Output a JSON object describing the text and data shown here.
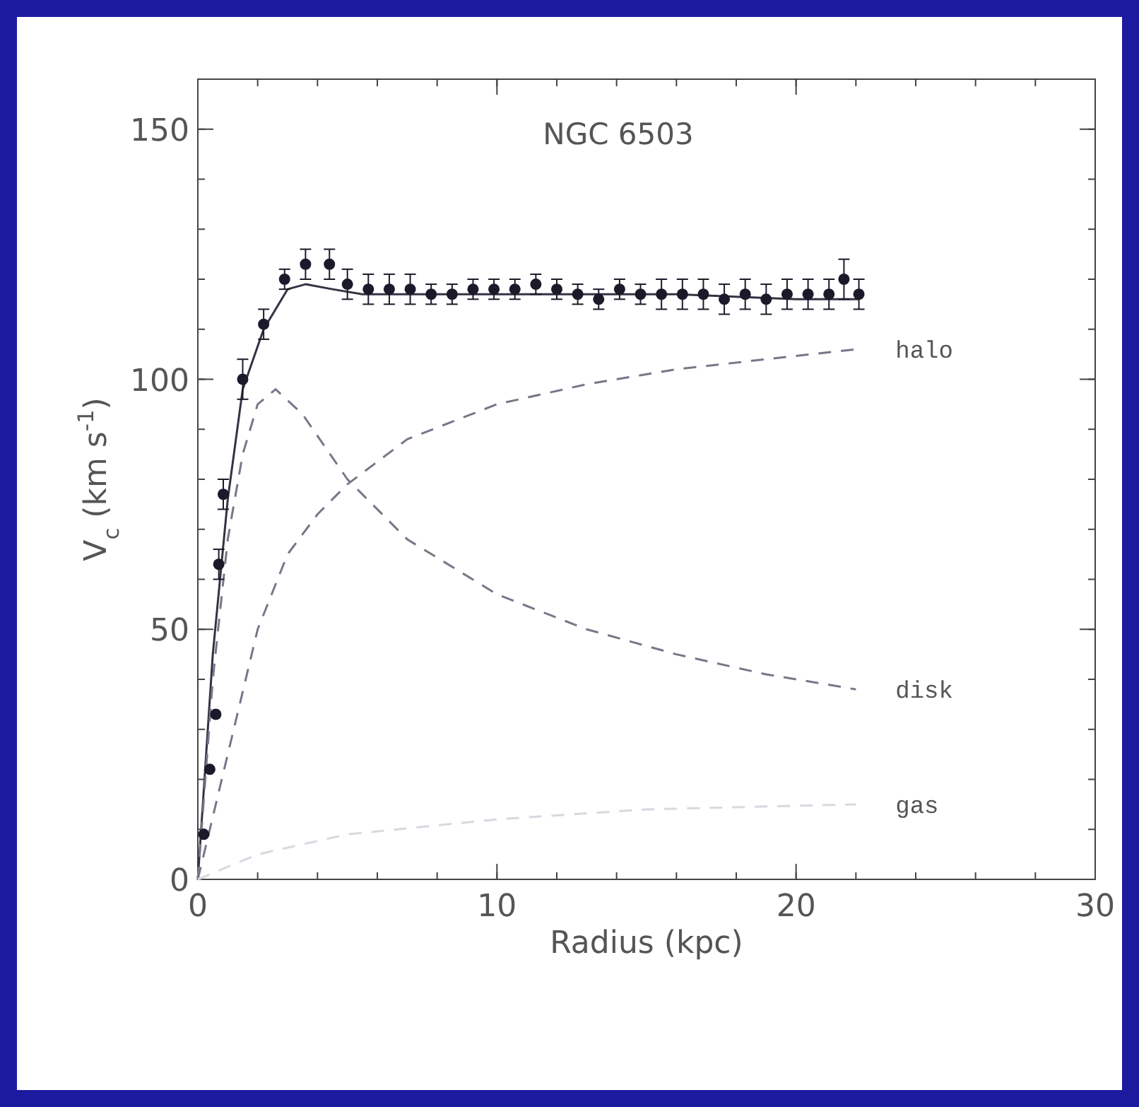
{
  "chart_data": {
    "type": "scatter",
    "title": "NGC 6503",
    "xlabel": "Radius (kpc)",
    "ylabel": "V$_{c}$ (km s$^{-1}$)",
    "xlim": [
      0,
      30
    ],
    "ylim": [
      0,
      160
    ],
    "xticks": [
      0,
      10,
      20,
      30
    ],
    "yticks": [
      0,
      50,
      100,
      150
    ],
    "grid": false,
    "series": [
      {
        "marker": "circle",
        "color": "#1a1a2a",
        "x": [
          0.2,
          0.4,
          0.6,
          0.7,
          0.85,
          1.5,
          2.2,
          2.9,
          3.6,
          4.4,
          5.0,
          5.7,
          6.4,
          7.1,
          7.8,
          8.5,
          9.2,
          9.9,
          10.6,
          11.3,
          12.0,
          12.7,
          13.4,
          14.1,
          14.8,
          15.5,
          16.2,
          16.9,
          17.6,
          18.3,
          19.0,
          19.7,
          20.4,
          21.1,
          21.6,
          22.1
        ],
        "values": [
          9,
          22,
          33,
          63,
          77,
          100,
          111,
          120,
          123,
          123,
          119,
          118,
          118,
          118,
          117,
          117,
          118,
          118,
          118,
          119,
          118,
          117,
          116,
          118,
          117,
          117,
          117,
          117,
          116,
          117,
          116,
          117,
          117,
          117,
          120,
          117
        ],
        "errors": [
          null,
          null,
          null,
          3,
          3,
          4,
          3,
          2,
          3,
          3,
          3,
          3,
          3,
          3,
          2,
          2,
          2,
          2,
          2,
          2,
          2,
          2,
          2,
          2,
          2,
          3,
          3,
          3,
          3,
          3,
          3,
          3,
          3,
          3,
          4,
          3
        ]
      },
      {
        "type": "line",
        "line_style": "solid",
        "color": "#333344",
        "x": [
          0,
          0.5,
          1,
          1.5,
          2.2,
          3,
          3.6,
          4.5,
          5.5,
          8,
          12,
          16,
          20,
          22.1
        ],
        "values": [
          0,
          45,
          76,
          98,
          110,
          118,
          119,
          118,
          117,
          117,
          117,
          117,
          116,
          116
        ]
      },
      {
        "type": "line",
        "name": "halo",
        "line_style": "dashed",
        "color": "#777788",
        "x": [
          0,
          1,
          2,
          3,
          4,
          5,
          7,
          10,
          13,
          16,
          19,
          22
        ],
        "values": [
          0,
          25,
          50,
          65,
          73,
          79,
          88,
          95,
          99,
          102,
          104,
          106
        ]
      },
      {
        "type": "line",
        "name": "disk",
        "line_style": "dashed",
        "color": "#777788",
        "x": [
          0,
          0.5,
          1,
          1.5,
          2,
          2.6,
          3.5,
          5,
          7,
          10,
          13,
          16,
          19,
          22
        ],
        "values": [
          0,
          40,
          68,
          85,
          95,
          98,
          93,
          80,
          68,
          57,
          50,
          45,
          41,
          38
        ]
      },
      {
        "type": "line",
        "name": "gas",
        "line_style": "dashed",
        "color": "#d8d8e0",
        "x": [
          0,
          2,
          5,
          10,
          15,
          22
        ],
        "values": [
          0,
          5,
          9,
          12,
          14,
          15
        ]
      }
    ]
  }
}
